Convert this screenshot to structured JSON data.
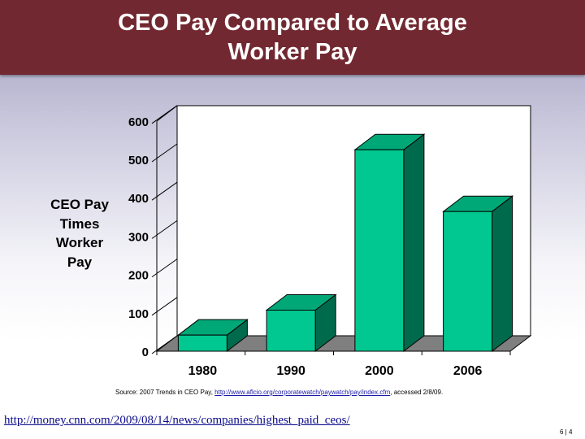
{
  "header": {
    "title": "CEO Pay Compared to Average Worker Pay"
  },
  "chart_data": {
    "type": "bar",
    "title": "",
    "xlabel": "",
    "ylabel": "CEO Pay Times Worker Pay",
    "categories": [
      "1980",
      "1990",
      "2000",
      "2006"
    ],
    "values": [
      42,
      107,
      525,
      364
    ],
    "ylim": [
      0,
      600
    ],
    "yticks": [
      "0",
      "100",
      "200",
      "300",
      "400",
      "500",
      "600"
    ],
    "grid": false,
    "legend": "none",
    "style": "3d",
    "colors": {
      "bar_front": "#00c890",
      "bar_top": "#00a878",
      "bar_side": "#006a4c",
      "floor": "#7f7f7f"
    }
  },
  "source": {
    "prefix": "Source:  2007 Trends in CEO Pay, ",
    "link": "http://www.aflcio.org/corporatewatch/paywatch/pay/index.cfm",
    "suffix": ", accessed 2/8/09."
  },
  "footer": {
    "link": "http://money.cnn.com/2009/08/14/news/companies/highest_paid_ceos/",
    "page": "6 | 4"
  }
}
